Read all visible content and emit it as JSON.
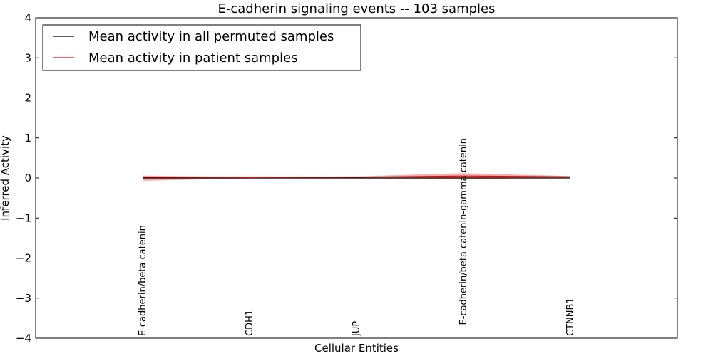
{
  "chart_data": {
    "type": "line",
    "title": "E-cadherin signaling events -- 103 samples",
    "xlabel": "Cellular Entities",
    "ylabel": "Inferred Activity",
    "ylim": [
      -4,
      4
    ],
    "yticks": [
      -4,
      -3,
      -2,
      -1,
      0,
      1,
      2,
      3,
      4
    ],
    "ytick_labels": [
      "−4",
      "−3",
      "−2",
      "−1",
      "0",
      "1",
      "2",
      "3",
      "4"
    ],
    "categories": [
      "E-cadherin/beta catenin",
      "CDH1",
      "JUP",
      "E-cadherin/beta catenin-gamma catenin",
      "CTNNB1"
    ],
    "category_label_anchor": [
      "bottom",
      "bottom",
      "bottom",
      "top",
      "bottom"
    ],
    "series": [
      {
        "name": "Mean activity in all permuted samples",
        "color": "#000000",
        "values": [
          0.0,
          0.0,
          0.0,
          0.0,
          0.0
        ],
        "band_low": [
          -0.02,
          -0.01,
          -0.01,
          -0.02,
          -0.01
        ],
        "band_high": [
          0.02,
          0.01,
          0.01,
          0.02,
          0.01
        ]
      },
      {
        "name": "Mean activity in patient samples",
        "color": "#ff0000",
        "band_color": "#f4a0a0",
        "values": [
          0.02,
          0.01,
          0.02,
          0.05,
          0.03
        ],
        "band_low": [
          -0.07,
          -0.01,
          -0.01,
          -0.02,
          0.0
        ],
        "band_high": [
          0.06,
          0.02,
          0.04,
          0.12,
          0.05
        ]
      }
    ],
    "reference_line": {
      "y": 0,
      "style": "dotted"
    },
    "legend_position": "top-left"
  }
}
